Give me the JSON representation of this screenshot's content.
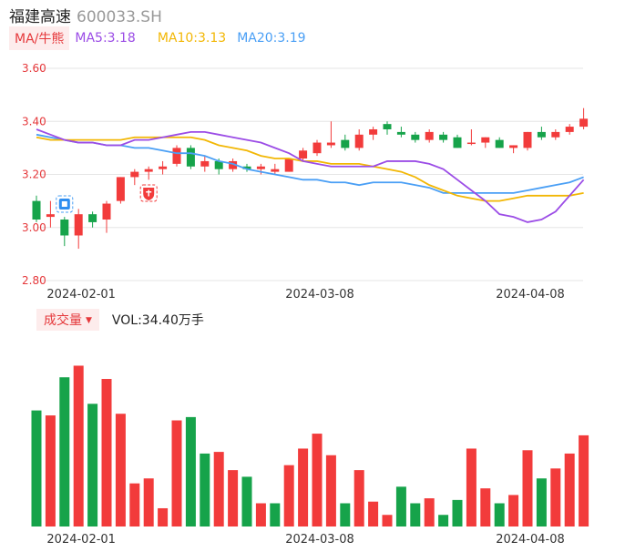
{
  "header": {
    "name": "福建高速",
    "code": "600033.SH"
  },
  "legend": {
    "ma_button": "MA/牛熊",
    "ma5": "MA5:3.18",
    "ma10": "MA10:3.13",
    "ma20": "MA20:3.19"
  },
  "volume_header": {
    "button": "成交量",
    "value": "VOL:34.40万手"
  },
  "colors": {
    "up": "#f23b3b",
    "down": "#16a34a",
    "ma5": "#9b4ce6",
    "ma10": "#f2b705",
    "ma20": "#4a9ff5"
  },
  "icons": [
    "ji-badge-icon",
    "niu-badge-icon"
  ],
  "chart_data": [
    {
      "type": "candlestick",
      "title": "",
      "ylim": [
        2.8,
        3.6
      ],
      "yticks": [
        "3.60",
        "3.40",
        "3.20",
        "3.00",
        "2.80"
      ],
      "xticks": [
        "2024-02-01",
        "2024-03-08",
        "2024-04-08"
      ],
      "candles": [
        {
          "o": 3.1,
          "c": 3.03,
          "h": 3.12,
          "l": 3.02
        },
        {
          "o": 3.04,
          "c": 3.05,
          "h": 3.1,
          "l": 3.0
        },
        {
          "o": 3.03,
          "c": 2.97,
          "h": 3.04,
          "l": 2.93
        },
        {
          "o": 2.97,
          "c": 3.05,
          "h": 3.07,
          "l": 2.92
        },
        {
          "o": 3.05,
          "c": 3.02,
          "h": 3.06,
          "l": 3.0
        },
        {
          "o": 3.03,
          "c": 3.09,
          "h": 3.1,
          "l": 2.98
        },
        {
          "o": 3.1,
          "c": 3.19,
          "h": 3.19,
          "l": 3.09
        },
        {
          "o": 3.19,
          "c": 3.21,
          "h": 3.22,
          "l": 3.16
        },
        {
          "o": 3.21,
          "c": 3.22,
          "h": 3.23,
          "l": 3.18
        },
        {
          "o": 3.22,
          "c": 3.23,
          "h": 3.25,
          "l": 3.2
        },
        {
          "o": 3.24,
          "c": 3.3,
          "h": 3.31,
          "l": 3.23
        },
        {
          "o": 3.3,
          "c": 3.23,
          "h": 3.31,
          "l": 3.22
        },
        {
          "o": 3.23,
          "c": 3.25,
          "h": 3.27,
          "l": 3.21
        },
        {
          "o": 3.25,
          "c": 3.22,
          "h": 3.26,
          "l": 3.2
        },
        {
          "o": 3.22,
          "c": 3.25,
          "h": 3.26,
          "l": 3.21
        },
        {
          "o": 3.23,
          "c": 3.22,
          "h": 3.24,
          "l": 3.21
        },
        {
          "o": 3.22,
          "c": 3.23,
          "h": 3.24,
          "l": 3.2
        },
        {
          "o": 3.21,
          "c": 3.22,
          "h": 3.24,
          "l": 3.2
        },
        {
          "o": 3.21,
          "c": 3.26,
          "h": 3.26,
          "l": 3.21
        },
        {
          "o": 3.26,
          "c": 3.29,
          "h": 3.3,
          "l": 3.25
        },
        {
          "o": 3.28,
          "c": 3.32,
          "h": 3.33,
          "l": 3.27
        },
        {
          "o": 3.31,
          "c": 3.32,
          "h": 3.4,
          "l": 3.3
        },
        {
          "o": 3.33,
          "c": 3.3,
          "h": 3.35,
          "l": 3.29
        },
        {
          "o": 3.3,
          "c": 3.35,
          "h": 3.37,
          "l": 3.29
        },
        {
          "o": 3.35,
          "c": 3.37,
          "h": 3.38,
          "l": 3.33
        },
        {
          "o": 3.39,
          "c": 3.37,
          "h": 3.4,
          "l": 3.35
        },
        {
          "o": 3.36,
          "c": 3.35,
          "h": 3.38,
          "l": 3.34
        },
        {
          "o": 3.35,
          "c": 3.33,
          "h": 3.36,
          "l": 3.32
        },
        {
          "o": 3.33,
          "c": 3.36,
          "h": 3.37,
          "l": 3.32
        },
        {
          "o": 3.35,
          "c": 3.33,
          "h": 3.36,
          "l": 3.32
        },
        {
          "o": 3.34,
          "c": 3.3,
          "h": 3.35,
          "l": 3.3
        },
        {
          "o": 3.32,
          "c": 3.32,
          "h": 3.37,
          "l": 3.31
        },
        {
          "o": 3.32,
          "c": 3.34,
          "h": 3.34,
          "l": 3.3
        },
        {
          "o": 3.33,
          "c": 3.3,
          "h": 3.34,
          "l": 3.3
        },
        {
          "o": 3.3,
          "c": 3.31,
          "h": 3.31,
          "l": 3.28
        },
        {
          "o": 3.3,
          "c": 3.36,
          "h": 3.36,
          "l": 3.29
        },
        {
          "o": 3.36,
          "c": 3.34,
          "h": 3.38,
          "l": 3.33
        },
        {
          "o": 3.34,
          "c": 3.36,
          "h": 3.37,
          "l": 3.33
        },
        {
          "o": 3.36,
          "c": 3.38,
          "h": 3.39,
          "l": 3.35
        },
        {
          "o": 3.38,
          "c": 3.41,
          "h": 3.45,
          "l": 3.37
        }
      ],
      "ma5": [
        3.37,
        3.35,
        3.33,
        3.32,
        3.32,
        3.31,
        3.31,
        3.33,
        3.33,
        3.34,
        3.35,
        3.36,
        3.36,
        3.35,
        3.34,
        3.33,
        3.32,
        3.3,
        3.28,
        3.25,
        3.24,
        3.23,
        3.23,
        3.23,
        3.23,
        3.25,
        3.25,
        3.25,
        3.24,
        3.22,
        3.18,
        3.14,
        3.1,
        3.05,
        3.04,
        3.02,
        3.03,
        3.06,
        3.12,
        3.18
      ],
      "ma10": [
        3.34,
        3.33,
        3.33,
        3.33,
        3.33,
        3.33,
        3.33,
        3.34,
        3.34,
        3.34,
        3.34,
        3.34,
        3.33,
        3.31,
        3.3,
        3.29,
        3.27,
        3.26,
        3.26,
        3.25,
        3.25,
        3.24,
        3.24,
        3.24,
        3.23,
        3.22,
        3.21,
        3.19,
        3.16,
        3.14,
        3.12,
        3.11,
        3.1,
        3.1,
        3.11,
        3.12,
        3.12,
        3.12,
        3.12,
        3.13
      ],
      "ma20": [
        3.35,
        3.34,
        3.33,
        3.32,
        3.32,
        3.31,
        3.31,
        3.3,
        3.3,
        3.29,
        3.28,
        3.28,
        3.27,
        3.25,
        3.24,
        3.22,
        3.21,
        3.2,
        3.19,
        3.18,
        3.18,
        3.17,
        3.17,
        3.16,
        3.17,
        3.17,
        3.17,
        3.16,
        3.15,
        3.13,
        3.13,
        3.13,
        3.13,
        3.13,
        3.13,
        3.14,
        3.15,
        3.16,
        3.17,
        3.19
      ]
    },
    {
      "type": "bar",
      "title": "",
      "xticks": [
        "2024-02-01",
        "2024-03-08",
        "2024-04-08"
      ],
      "values": [
        70,
        67,
        90,
        97,
        74,
        89,
        68,
        26,
        29,
        11,
        64,
        66,
        44,
        45,
        34,
        30,
        14,
        14,
        37,
        47,
        56,
        43,
        14,
        34,
        15,
        7,
        24,
        14,
        17,
        7,
        16,
        47,
        23,
        14,
        19,
        46,
        29,
        35,
        44,
        55
      ],
      "colors": [
        "down",
        "up",
        "down",
        "up",
        "down",
        "up",
        "up",
        "up",
        "up",
        "up",
        "up",
        "down",
        "down",
        "up",
        "up",
        "down",
        "up",
        "down",
        "up",
        "up",
        "up",
        "up",
        "down",
        "up",
        "up",
        "up",
        "down",
        "down",
        "up",
        "down",
        "down",
        "up",
        "up",
        "down",
        "up",
        "up",
        "down",
        "up",
        "up",
        "up"
      ]
    }
  ]
}
